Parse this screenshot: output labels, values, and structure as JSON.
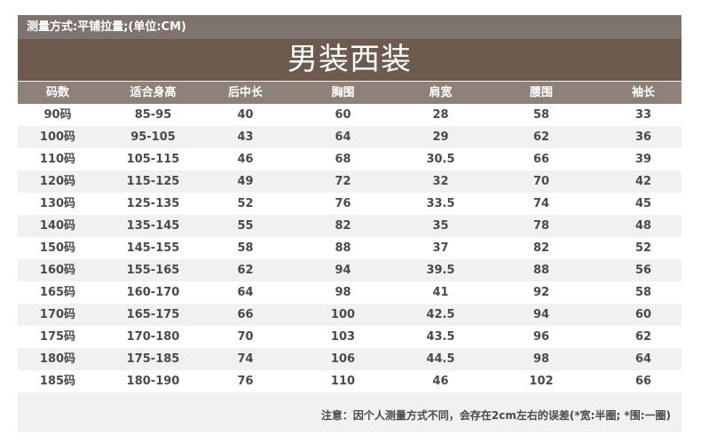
{
  "measure_note": "测量方式:平铺拉量;(单位:CM)",
  "title": "男装西装",
  "headers": [
    "码数",
    "适合身高",
    "后中长",
    "胸围",
    "肩宽",
    "腰围",
    "袖长"
  ],
  "rows": [
    [
      "90码",
      "85-95",
      "40",
      "60",
      "28",
      "58",
      "33"
    ],
    [
      "100码",
      "95-105",
      "43",
      "64",
      "29",
      "62",
      "36"
    ],
    [
      "110码",
      "105-115",
      "46",
      "68",
      "30.5",
      "66",
      "39"
    ],
    [
      "120码",
      "115-125",
      "49",
      "72",
      "32",
      "70",
      "42"
    ],
    [
      "130码",
      "125-135",
      "52",
      "76",
      "33.5",
      "74",
      "45"
    ],
    [
      "140码",
      "135-145",
      "55",
      "82",
      "35",
      "78",
      "48"
    ],
    [
      "150码",
      "145-155",
      "58",
      "88",
      "37",
      "82",
      "52"
    ],
    [
      "160码",
      "155-165",
      "62",
      "94",
      "39.5",
      "88",
      "56"
    ],
    [
      "165码",
      "160-170",
      "64",
      "98",
      "41",
      "92",
      "58"
    ],
    [
      "170码",
      "165-175",
      "66",
      "100",
      "42.5",
      "94",
      "60"
    ],
    [
      "175码",
      "170-180",
      "70",
      "103",
      "43.5",
      "96",
      "62"
    ],
    [
      "180码",
      "175-185",
      "74",
      "106",
      "44.5",
      "98",
      "64"
    ],
    [
      "185码",
      "180-190",
      "76",
      "110",
      "46",
      "102",
      "66"
    ]
  ],
  "footnote": "注意：因个人测量方式不同，会存在2cm左右的误差(*宽:半圈; *围:一圈)",
  "colors": {
    "topbar": "#7e746d",
    "titlebar": "#6e5b4f",
    "header": "#8d8179",
    "stripe": "#f1f1f2"
  }
}
